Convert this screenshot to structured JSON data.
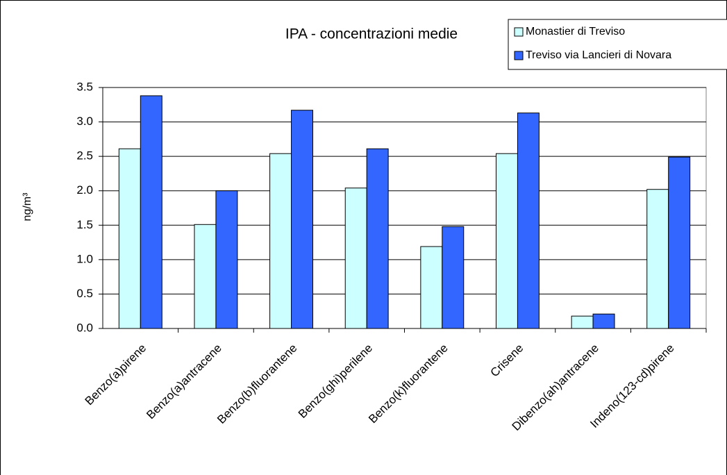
{
  "chart_data": {
    "type": "bar",
    "title": "IPA - concentrazioni medie",
    "y_label": "ng/m³",
    "categories": [
      "Benzo(a)pirene",
      "Benzo(a)antracene",
      "Benzo(b)fluorantene",
      "Benzo(ghi)perilene",
      "Benzo(k)fluorantene",
      "Crisene",
      "Dibenzo(ah)antracene",
      "Indeno(123-cd)pirene"
    ],
    "series": [
      {
        "name": "Monastier di Treviso",
        "color": "#ccffff",
        "values": [
          2.61,
          1.51,
          2.54,
          2.04,
          1.19,
          2.54,
          0.18,
          2.02
        ]
      },
      {
        "name": "Treviso via Lancieri di Novara",
        "color": "#3366ff",
        "values": [
          3.38,
          2.0,
          3.17,
          2.61,
          1.48,
          3.13,
          0.21,
          2.49
        ]
      }
    ],
    "ylim": [
      0,
      3.5
    ],
    "yticks": [
      {
        "value": 0,
        "label": "0.0"
      },
      {
        "value": 0.5,
        "label": "0.5"
      },
      {
        "value": 1,
        "label": "1.0"
      },
      {
        "value": 1.5,
        "label": "1.5"
      },
      {
        "value": 2,
        "label": "2.0"
      },
      {
        "value": 2.5,
        "label": "2.5"
      },
      {
        "value": 3,
        "label": "3.0"
      },
      {
        "value": 3.5,
        "label": "3.5"
      }
    ],
    "grid": true,
    "legend": "top-right"
  }
}
